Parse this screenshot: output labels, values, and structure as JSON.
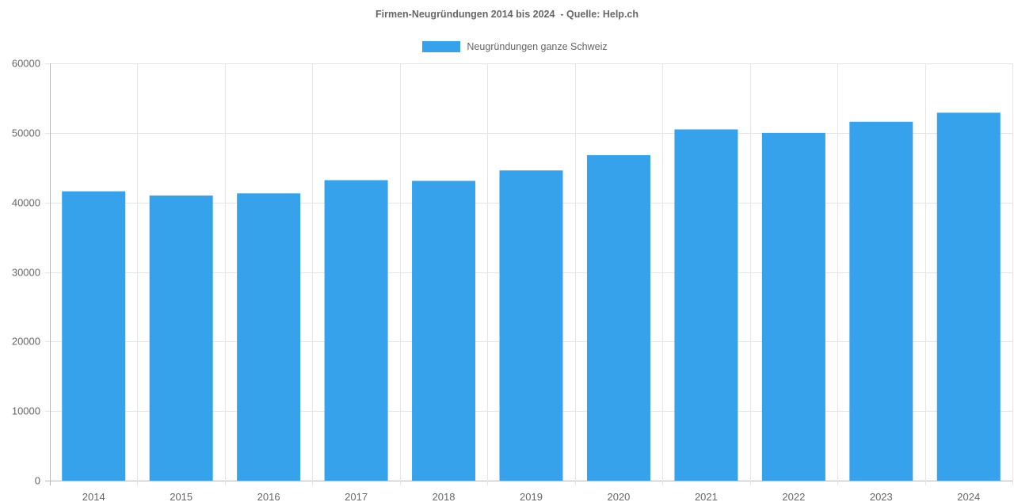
{
  "chart_data": {
    "type": "bar",
    "title": "Firmen-Neugründungen 2014 bis 2024  - Quelle: Help.ch",
    "xlabel": "",
    "ylabel": "",
    "categories": [
      "2014",
      "2015",
      "2016",
      "2017",
      "2018",
      "2019",
      "2020",
      "2021",
      "2022",
      "2023",
      "2024"
    ],
    "series": [
      {
        "name": "Neugründungen ganze Schweiz",
        "values": [
          41600,
          41000,
          41300,
          43200,
          43100,
          44600,
          46800,
          50500,
          50000,
          51600,
          52900
        ],
        "color": "#36a2eb"
      }
    ],
    "ylim": [
      0,
      60000
    ],
    "yticks": [
      0,
      10000,
      20000,
      30000,
      40000,
      50000,
      60000
    ],
    "grid": true,
    "legend_position": "top-center"
  }
}
